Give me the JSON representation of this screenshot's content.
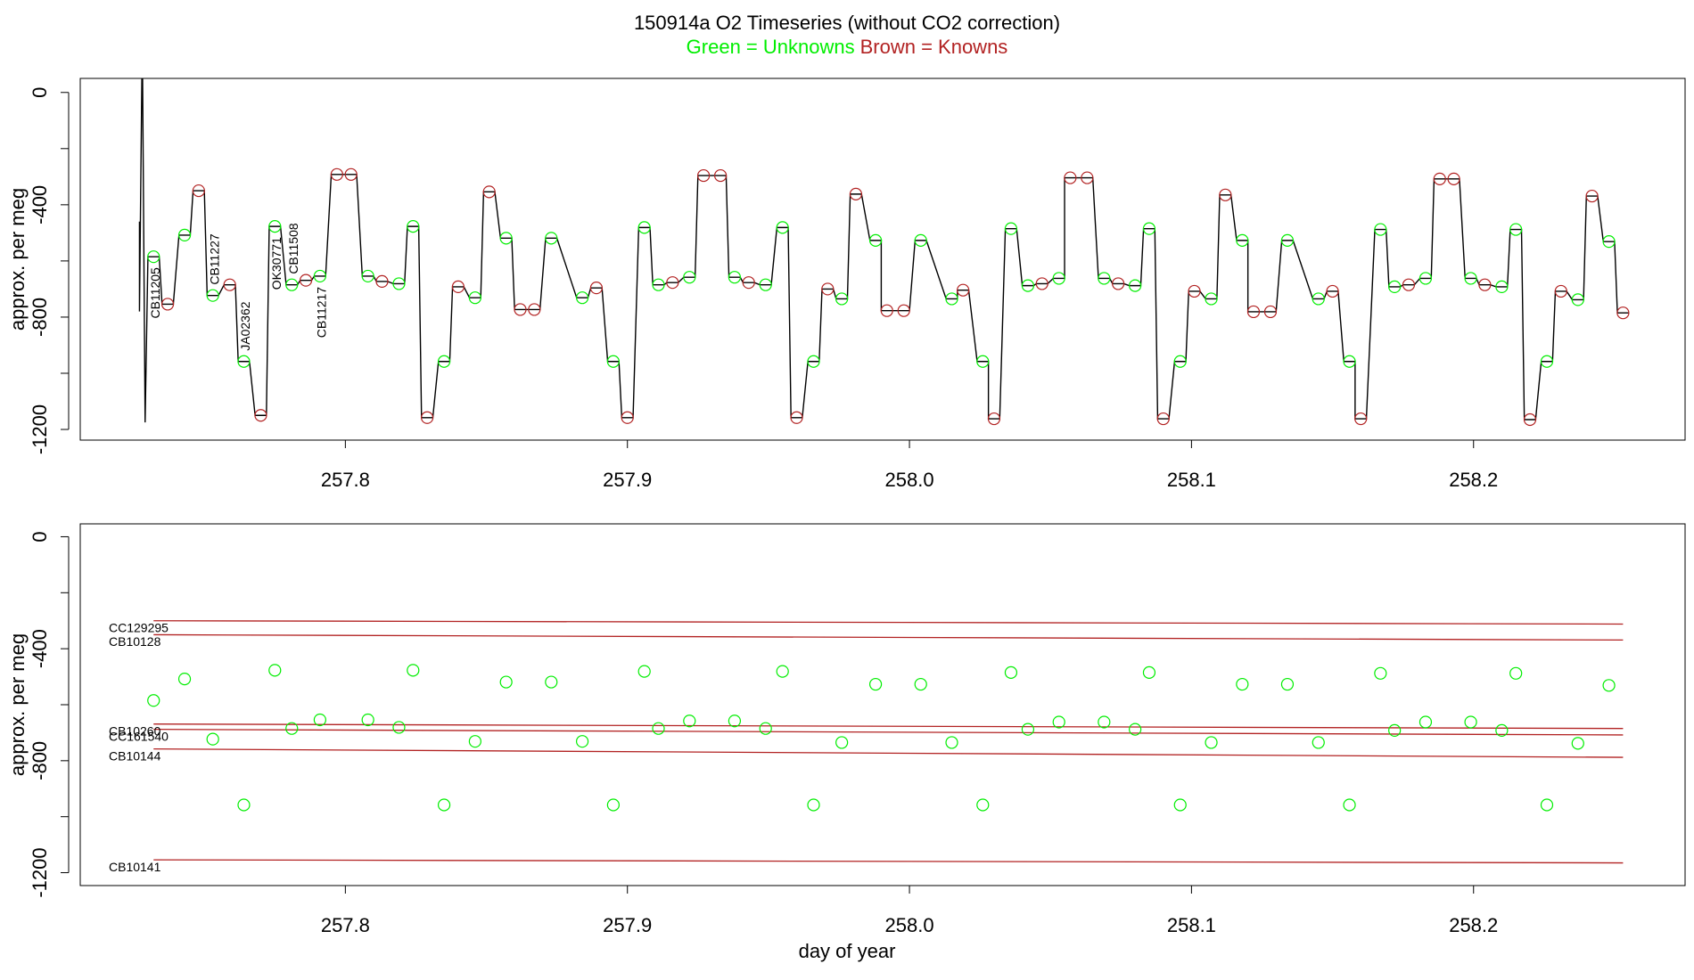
{
  "chart_data": [
    {
      "type": "line",
      "title": "150914a   O2 Timeseries (without CO2 correction)",
      "subtitle": [
        {
          "text": "Green = Unknowns",
          "color": "#00ee00"
        },
        {
          "text": "Brown = Knowns",
          "color": "#b22222"
        }
      ],
      "ylabel": "approx. per meg",
      "xlim": [
        257.706,
        258.275
      ],
      "ylim": [
        -1238,
        50
      ],
      "xticks": [
        257.8,
        257.9,
        {
          "value": 258,
          "label": "258.0"
        },
        258.1,
        258.2
      ],
      "yticks": [
        0,
        -400,
        -800,
        -1200
      ],
      "yticks_minor": [
        -200,
        -600,
        -1000
      ],
      "series": [
        {
          "kind": "line",
          "color": "#000000",
          "x": [
            257.727,
            257.727,
            257.728,
            257.729,
            257.73,
            257.734,
            257.735,
            257.739,
            257.741,
            257.745,
            257.746,
            257.75,
            257.751,
            257.755,
            257.757,
            257.761,
            257.762,
            257.766,
            257.768,
            257.772,
            257.773,
            257.777,
            257.779,
            257.783,
            257.784,
            257.788,
            257.789,
            257.793,
            257.795,
            257.799,
            257.8,
            257.804,
            257.806,
            257.81,
            257.811,
            257.815,
            257.817,
            257.821,
            257.822,
            257.826,
            257.827,
            257.831,
            257.833,
            257.837,
            257.838,
            257.842,
            257.844,
            257.848,
            257.849,
            257.853,
            257.855,
            257.859,
            257.86,
            257.864,
            257.865,
            257.869,
            257.871,
            257.875,
            257.882,
            257.886,
            257.887,
            257.891,
            257.893,
            257.897,
            257.898,
            257.902,
            257.904,
            257.908,
            257.909,
            257.913,
            257.914,
            257.918,
            257.92,
            257.924,
            257.925,
            257.929,
            257.931,
            257.935,
            257.936,
            257.94,
            257.941,
            257.945,
            257.947,
            257.951,
            257.953,
            257.957,
            257.958,
            257.962,
            257.964,
            257.968,
            257.969,
            257.973,
            257.974,
            257.978,
            257.979,
            257.983,
            257.986,
            257.99,
            257.99,
            257.994,
            257.996,
            258.0,
            258.002,
            258.006,
            258.013,
            258.017,
            258.017,
            258.021,
            258.024,
            258.028,
            258.028,
            258.032,
            258.034,
            258.038,
            258.04,
            258.044,
            258.045,
            258.049,
            258.051,
            258.055,
            258.055,
            258.059,
            258.061,
            258.065,
            258.067,
            258.071,
            258.072,
            258.076,
            258.078,
            258.082,
            258.083,
            258.087,
            258.088,
            258.092,
            258.094,
            258.098,
            258.099,
            258.103,
            258.105,
            258.109,
            258.11,
            258.114,
            258.116,
            258.12,
            258.12,
            258.124,
            258.126,
            258.13,
            258.132,
            258.136,
            258.143,
            258.147,
            258.148,
            258.152,
            258.154,
            258.158,
            258.158,
            258.162,
            258.165,
            258.169,
            258.17,
            258.174,
            258.175,
            258.179,
            258.181,
            258.185,
            258.186,
            258.19,
            258.191,
            258.195,
            258.197,
            258.201,
            258.202,
            258.206,
            258.208,
            258.212,
            258.213,
            258.217,
            258.218,
            258.222,
            258.224,
            258.228,
            258.229,
            258.233,
            258.235,
            258.239,
            258.24,
            258.244,
            258.246,
            258.25,
            258.251,
            258.255
          ],
          "values": [
            -460,
            -780,
            200,
            -1175,
            -585,
            -585,
            -754,
            -754,
            -508,
            -508,
            -350,
            -350,
            -723,
            -723,
            -685,
            -685,
            -958,
            -958,
            -1150,
            -1150,
            -477,
            -477,
            -685,
            -685,
            -669,
            -669,
            -654,
            -654,
            -292,
            -292,
            -292,
            -292,
            -654,
            -654,
            -673,
            -673,
            -681,
            -681,
            -477,
            -477,
            -1158,
            -1158,
            -958,
            -958,
            -692,
            -692,
            -731,
            -731,
            -354,
            -354,
            -519,
            -519,
            -773,
            -773,
            -773,
            -773,
            -519,
            -519,
            -731,
            -731,
            -696,
            -696,
            -958,
            -958,
            -1158,
            -1158,
            -481,
            -481,
            -685,
            -685,
            -677,
            -677,
            -658,
            -658,
            -296,
            -296,
            -296,
            -296,
            -658,
            -658,
            -677,
            -677,
            -685,
            -685,
            -481,
            -481,
            -1158,
            -1158,
            -958,
            -958,
            -700,
            -700,
            -735,
            -735,
            -362,
            -362,
            -527,
            -527,
            -777,
            -777,
            -777,
            -777,
            -527,
            -527,
            -735,
            -735,
            -704,
            -704,
            -958,
            -958,
            -1162,
            -1162,
            -485,
            -485,
            -688,
            -688,
            -681,
            -681,
            -662,
            -662,
            -304,
            -304,
            -304,
            -304,
            -662,
            -662,
            -681,
            -681,
            -688,
            -688,
            -485,
            -485,
            -1162,
            -1162,
            -958,
            -958,
            -708,
            -708,
            -735,
            -735,
            -365,
            -365,
            -527,
            -527,
            -781,
            -781,
            -781,
            -781,
            -527,
            -527,
            -735,
            -735,
            -708,
            -708,
            -958,
            -958,
            -1162,
            -1162,
            -488,
            -488,
            -692,
            -692,
            -685,
            -685,
            -662,
            -662,
            -308,
            -308,
            -308,
            -308,
            -662,
            -662,
            -685,
            -685,
            -692,
            -692,
            -488,
            -488,
            -1165,
            -1165,
            -958,
            -958,
            -708,
            -708,
            -738,
            -738,
            -369,
            -369,
            -531,
            -531,
            -785,
            -785
          ]
        },
        {
          "kind": "points",
          "color": "#b22222",
          "x": [
            257.737,
            257.748,
            257.759,
            257.77,
            257.786,
            257.797,
            257.802,
            257.813,
            257.829,
            257.84,
            257.851,
            257.862,
            257.867,
            257.889,
            257.9,
            257.916,
            257.927,
            257.933,
            257.943,
            257.96,
            257.971,
            257.981,
            257.992,
            257.998,
            258.019,
            258.03,
            258.047,
            258.057,
            258.063,
            258.074,
            258.09,
            258.101,
            258.112,
            258.122,
            258.128,
            258.15,
            258.16,
            258.177,
            258.188,
            258.193,
            258.204,
            258.22,
            258.231,
            258.242,
            258.253
          ],
          "values": [
            -754,
            -350,
            -685,
            -1150,
            -669,
            -292,
            -292,
            -673,
            -1158,
            -692,
            -354,
            -773,
            -773,
            -696,
            -1158,
            -677,
            -296,
            -296,
            -677,
            -1158,
            -700,
            -362,
            -777,
            -777,
            -704,
            -1162,
            -681,
            -304,
            -304,
            -681,
            -1162,
            -708,
            -365,
            -781,
            -781,
            -708,
            -1162,
            -685,
            -308,
            -308,
            -685,
            -1165,
            -708,
            -369,
            -785
          ]
        },
        {
          "kind": "points",
          "color": "#00ee00",
          "x": [
            257.732,
            257.743,
            257.753,
            257.764,
            257.775,
            257.781,
            257.791,
            257.808,
            257.819,
            257.824,
            257.835,
            257.846,
            257.857,
            257.873,
            257.884,
            257.895,
            257.906,
            257.911,
            257.922,
            257.938,
            257.949,
            257.955,
            257.966,
            257.976,
            257.988,
            258.004,
            258.015,
            258.026,
            258.036,
            258.042,
            258.053,
            258.069,
            258.08,
            258.085,
            258.096,
            258.107,
            258.118,
            258.134,
            258.145,
            258.156,
            258.167,
            258.172,
            258.183,
            258.199,
            258.21,
            258.215,
            258.226,
            258.237,
            258.248
          ],
          "values": [
            -585,
            -508,
            -723,
            -958,
            -477,
            -685,
            -654,
            -654,
            -681,
            -477,
            -958,
            -731,
            -519,
            -519,
            -731,
            -958,
            -481,
            -685,
            -658,
            -658,
            -685,
            -481,
            -958,
            -735,
            -527,
            -527,
            -735,
            -958,
            -485,
            -688,
            -662,
            -662,
            -688,
            -485,
            -958,
            -735,
            -527,
            -527,
            -735,
            -958,
            -488,
            -692,
            -662,
            -662,
            -692,
            -488,
            -958,
            -738,
            -531
          ],
          "labels": [
            "CB11205",
            null,
            "CB11227",
            "JA02362",
            "OK30771",
            "CB11508",
            "CB11217",
            null,
            null,
            null,
            null,
            null,
            null,
            null,
            null,
            null,
            null,
            null,
            null,
            null,
            null,
            null,
            null,
            null,
            null,
            null,
            null,
            null,
            null,
            null,
            null,
            null,
            null,
            null,
            null,
            null,
            null,
            null,
            null,
            null,
            null,
            null,
            null,
            null,
            null,
            null,
            null,
            null,
            null
          ]
        }
      ]
    },
    {
      "type": "scatter",
      "xlabel": "day of year",
      "ylabel": "approx. per meg",
      "xlim": [
        257.706,
        258.275
      ],
      "ylim": [
        -1246,
        46
      ],
      "xticks": [
        257.8,
        257.9,
        {
          "value": 258,
          "label": "258.0"
        },
        258.1,
        258.2
      ],
      "yticks": [
        0,
        -400,
        -800,
        -1200
      ],
      "yticks_minor": [
        -200,
        -600,
        -1000
      ],
      "series": [
        {
          "name": "CC129295",
          "kind": "line",
          "color": "#b22222",
          "x": [
            257.732,
            258.253
          ],
          "values": [
            -300,
            -312
          ]
        },
        {
          "name": "CB10128",
          "kind": "line",
          "color": "#b22222",
          "x": [
            257.732,
            258.253
          ],
          "values": [
            -350,
            -369
          ]
        },
        {
          "name": "CB10260",
          "kind": "line",
          "color": "#b22222",
          "x": [
            257.732,
            258.253
          ],
          "values": [
            -669,
            -685
          ]
        },
        {
          "name": "CC161540",
          "kind": "line",
          "color": "#b22222",
          "x": [
            257.732,
            258.253
          ],
          "values": [
            -688,
            -708
          ]
        },
        {
          "name": "CB10144",
          "kind": "line",
          "color": "#b22222",
          "x": [
            257.732,
            258.253
          ],
          "values": [
            -758,
            -788
          ]
        },
        {
          "name": "CB10141",
          "kind": "line",
          "color": "#b22222",
          "x": [
            257.732,
            258.253
          ],
          "values": [
            -1154,
            -1165
          ]
        },
        {
          "kind": "points",
          "color": "#00ee00",
          "x": [
            257.732,
            257.743,
            257.753,
            257.764,
            257.775,
            257.781,
            257.791,
            257.808,
            257.819,
            257.824,
            257.835,
            257.846,
            257.857,
            257.873,
            257.884,
            257.895,
            257.906,
            257.911,
            257.922,
            257.938,
            257.949,
            257.955,
            257.966,
            257.976,
            257.988,
            258.004,
            258.015,
            258.026,
            258.036,
            258.042,
            258.053,
            258.069,
            258.08,
            258.085,
            258.096,
            258.107,
            258.118,
            258.134,
            258.145,
            258.156,
            258.167,
            258.172,
            258.183,
            258.199,
            258.21,
            258.215,
            258.226,
            258.237,
            258.248
          ],
          "values": [
            -585,
            -508,
            -723,
            -958,
            -477,
            -685,
            -654,
            -654,
            -681,
            -477,
            -958,
            -731,
            -519,
            -519,
            -731,
            -958,
            -481,
            -685,
            -658,
            -658,
            -685,
            -481,
            -958,
            -735,
            -527,
            -527,
            -735,
            -958,
            -485,
            -688,
            -662,
            -662,
            -688,
            -485,
            -958,
            -735,
            -527,
            -527,
            -735,
            -958,
            -488,
            -692,
            -662,
            -662,
            -692,
            -488,
            -958,
            -738,
            -531
          ]
        }
      ]
    }
  ]
}
